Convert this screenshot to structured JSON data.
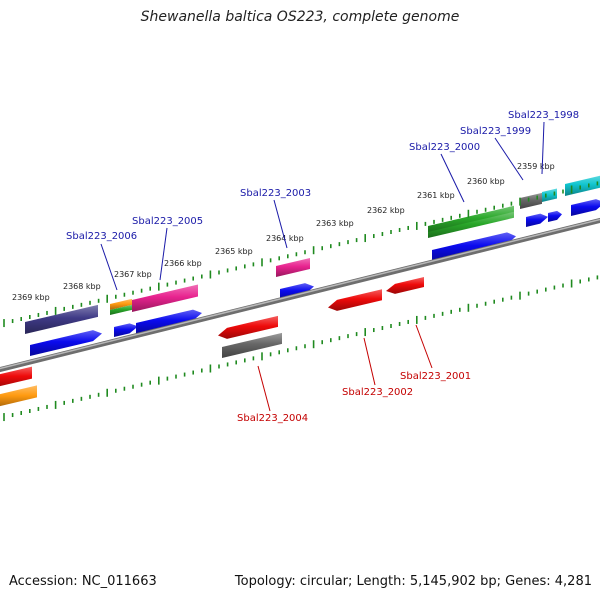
{
  "title": "Shewanella baltica OS223, complete genome",
  "footer": {
    "accession": "Accession: NC_011663",
    "summary": "Topology: circular; Length: 5,145,902 bp; Genes: 4,281"
  },
  "colors": {
    "backbone": "#8a8a8a",
    "tick": "#1f8a1f",
    "forward_label": "#1a1aa8",
    "reverse_label": "#c40000",
    "blue": "#0a0aee",
    "navy": "#3f3a86",
    "magenta": "#e8238f",
    "green": "#2aa82a",
    "orange": "#ff9a10",
    "gray": "#666666",
    "red": "#ee0a0a",
    "cyan": "#12c6d0"
  },
  "scale": {
    "unit": "kbp",
    "labels": [
      "2369 kbp",
      "2368 kbp",
      "2367 kbp",
      "2366 kbp",
      "2365 kbp",
      "2364 kbp",
      "2363 kbp",
      "2362 kbp",
      "2361 kbp",
      "2360 kbp",
      "2359 kbp"
    ]
  },
  "gene_labels": {
    "forward": [
      "Sbal223_2006",
      "Sbal223_2005",
      "Sbal223_2003",
      "Sbal223_2000",
      "Sbal223_1999",
      "Sbal223_1998"
    ],
    "reverse": [
      "Sbal223_2004",
      "Sbal223_2002",
      "Sbal223_2001"
    ]
  }
}
